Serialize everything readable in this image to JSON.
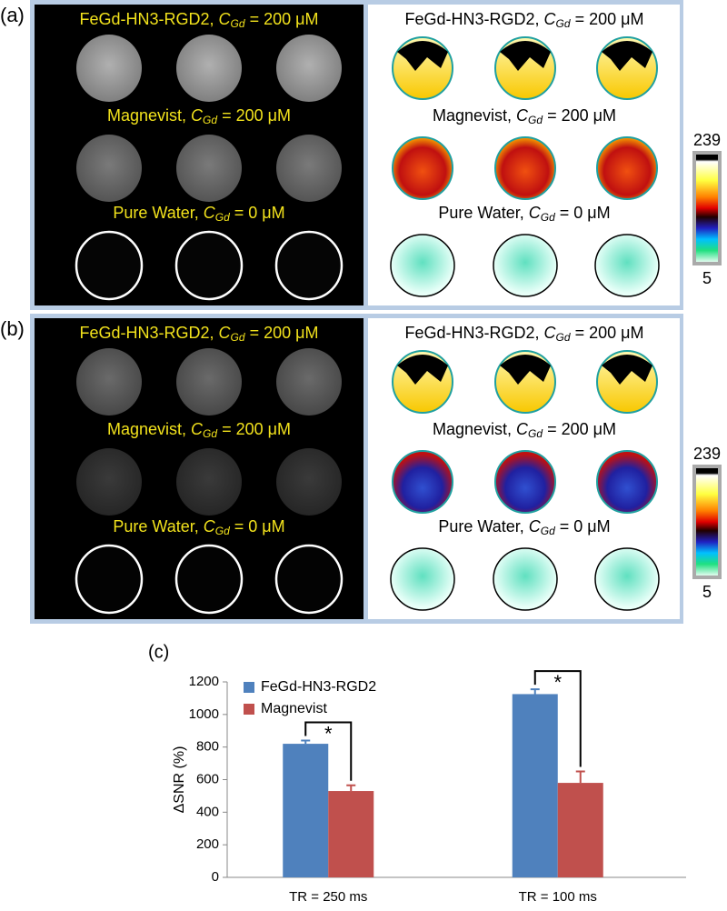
{
  "panels": [
    {
      "label": "(a)",
      "colorbar": {
        "max": 239,
        "min": 5
      }
    },
    {
      "label": "(b)",
      "colorbar": {
        "max": 239,
        "min": 5
      }
    }
  ],
  "rows": [
    {
      "prefix": "FeGd-HN3-RGD2, ",
      "symbol": "C",
      "sub": "Gd",
      "suffix": " = 200 μM"
    },
    {
      "prefix": "Magnevist, ",
      "symbol": "C",
      "sub": "Gd",
      "suffix": " = 200 μM"
    },
    {
      "prefix": "Pure Water, ",
      "symbol": "C",
      "sub": "Gd",
      "suffix": " = 0 μM"
    }
  ],
  "chart_data": {
    "type": "bar",
    "label": "(c)",
    "y_label": "ΔSNR (%)",
    "categories": [
      "TR = 250 ms",
      "TR = 100 ms"
    ],
    "series": [
      {
        "name": "FeGd-HN3-RGD2",
        "color": "#4f81bd",
        "values": [
          820,
          1125
        ],
        "errors": [
          20,
          30
        ]
      },
      {
        "name": "Magnevist",
        "color": "#c0504d",
        "values": [
          530,
          580
        ],
        "errors": [
          35,
          70
        ]
      }
    ],
    "annotations": [
      "*",
      "*"
    ],
    "ylim": [
      0,
      1200
    ],
    "yticks": [
      0,
      200,
      400,
      600,
      800,
      1000,
      1200
    ],
    "legend": "upper left"
  }
}
